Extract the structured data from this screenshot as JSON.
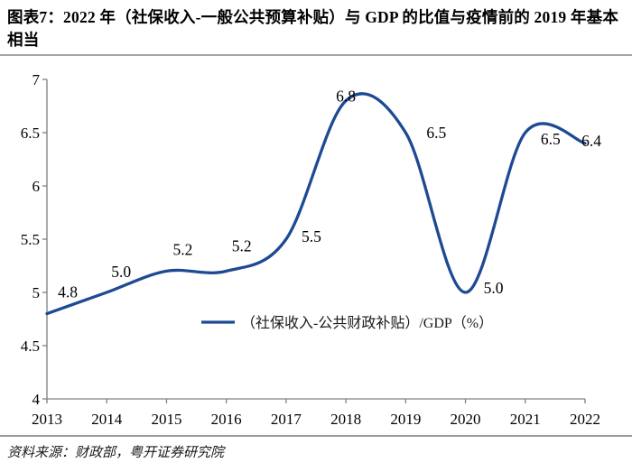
{
  "figure": {
    "title": "图表7：2022 年（社保收入-一般公共预算补贴）与 GDP 的比值与疫情前的 2019 年基本相当",
    "source": "资料来源：财政部，粤开证券研究院"
  },
  "chart_data": {
    "type": "line",
    "categories": [
      "2013",
      "2014",
      "2015",
      "2016",
      "2017",
      "2018",
      "2019",
      "2020",
      "2021",
      "2022"
    ],
    "series": [
      {
        "name": "（社保收入-公共财政补贴）/GDP（%）",
        "values": [
          4.8,
          5.0,
          5.2,
          5.2,
          5.5,
          6.8,
          6.5,
          5.0,
          6.5,
          6.4
        ]
      }
    ],
    "title": "",
    "xlabel": "",
    "ylabel": "",
    "ylim": [
      4,
      7
    ],
    "ytick_step": 0.5,
    "yticks": [
      4,
      4.5,
      5,
      5.5,
      6,
      6.5,
      7
    ],
    "grid": false,
    "smoothed": true,
    "data_labels": true,
    "legend_position": "bottom-center-inside",
    "colors": {
      "line": "#1E4A93",
      "axis": "#808080",
      "text": "#000000",
      "rule": "#a6a6a6"
    }
  }
}
